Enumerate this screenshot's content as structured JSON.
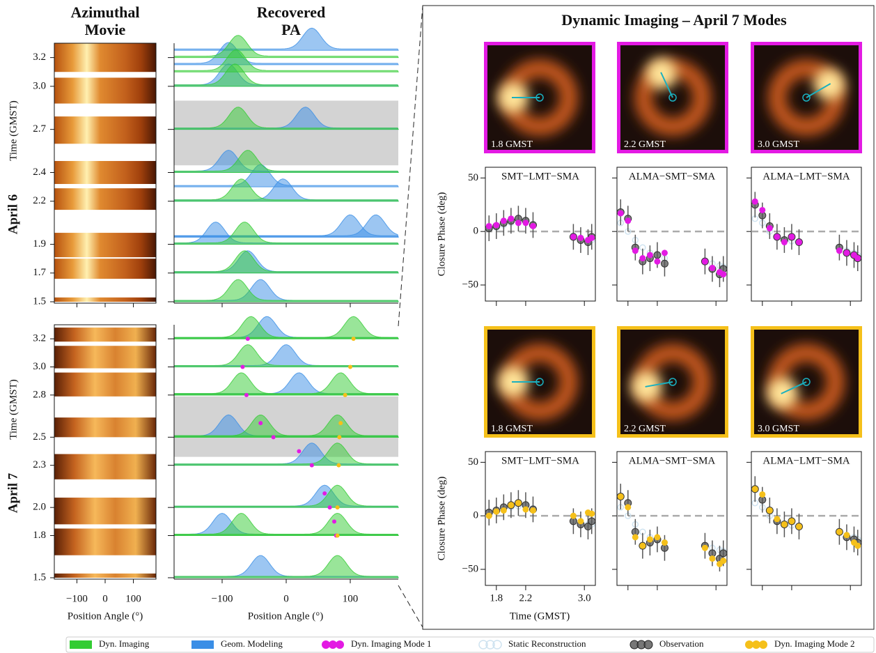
{
  "left": {
    "column_titles": [
      [
        "Azimuthal",
        "Movie"
      ],
      [
        "Recovered",
        "PA"
      ]
    ],
    "y_label": "Time (GMST)",
    "x_label": "Position Angle (°)",
    "movie_xlim": [
      -180,
      180
    ],
    "pa_xlim": [
      -175,
      175
    ],
    "xticks": [
      {
        "value": -100,
        "label": "−100"
      },
      0,
      100
    ],
    "panels": [
      {
        "day": "April 6",
        "ylim": [
          1.5,
          3.3
        ],
        "yticks": [
          1.5,
          1.7,
          1.9,
          2.2,
          2.4,
          2.7,
          {
            "value": 3,
            "label": "3.0"
          },
          3.2
        ],
        "movie_segments": [
          [
            3.1,
            3.3
          ],
          [
            2.88,
            3.06
          ],
          [
            2.6,
            2.79
          ],
          [
            2.32,
            2.48
          ],
          [
            2.14,
            2.29
          ],
          [
            1.81,
            1.98
          ],
          [
            1.66,
            1.8
          ],
          [
            1.5,
            1.53
          ]
        ],
        "gap": [
          2.45,
          2.9
        ]
      },
      {
        "day": "April 7",
        "ylim": [
          1.5,
          3.3
        ],
        "yticks": [
          1.5,
          1.8,
          {
            "value": 2,
            "label": "2.0"
          },
          2.3,
          2.5,
          2.8,
          {
            "value": 3,
            "label": "3.0"
          },
          3.2
        ],
        "movie_segments": [
          [
            3.18,
            3.28
          ],
          [
            2.99,
            3.15
          ],
          [
            2.79,
            2.96
          ],
          [
            2.5,
            2.64
          ],
          [
            2.2,
            2.38
          ],
          [
            1.88,
            2.07
          ],
          [
            1.66,
            1.85
          ],
          [
            1.5,
            1.53
          ]
        ],
        "gap": [
          2.36,
          2.79
        ]
      }
    ]
  },
  "right": {
    "title": "Dynamic Imaging – April 7 Modes",
    "y_label": "Closure Phase (deg)",
    "x_label": "Time (GMST)",
    "triangles": [
      "SMT−LMT−SMA",
      "ALMA−SMT−SMA",
      "ALMA−LMT−SMA"
    ],
    "times": [
      1.7,
      1.8,
      1.9,
      2.0,
      2.1,
      2.2,
      2.3,
      2.85,
      2.95,
      3.05,
      3.1
    ],
    "xlim": [
      1.65,
      3.15
    ],
    "xticks": [
      1.8,
      2.2,
      {
        "value": 3,
        "label": "3.0"
      }
    ],
    "ylim": [
      -65,
      60
    ],
    "yticks": [
      {
        "value": -50,
        "label": "−50"
      },
      0,
      50
    ]
  },
  "series": [
    {
      "name": "Dyn. Imaging",
      "color": "#33cc33",
      "kind": "patch",
      "pa_peaks": [
        {
          "times": [
            1.5,
            1.7,
            1.9,
            2.2,
            2.4,
            2.7,
            3.0,
            3.1,
            3.2
          ],
          "values": [
            -75,
            -65,
            -65,
            -70,
            -60,
            -75,
            -80,
            -78,
            -75
          ]
        },
        {
          "times": [
            1.5,
            1.8,
            1.8,
            2.0,
            2.3,
            2.5,
            2.5,
            2.8,
            2.8,
            3.0,
            3.2,
            3.2
          ],
          "values": [
            80,
            -70,
            80,
            80,
            80,
            -40,
            80,
            -70,
            85,
            -60,
            -55,
            105
          ]
        }
      ]
    },
    {
      "name": "Geom. Modeling",
      "color": "#3a8ee6",
      "kind": "patch",
      "pa_peaks": [
        {
          "times": [
            1.5,
            1.7,
            1.9,
            1.95,
            1.95,
            2.2,
            2.3,
            2.4,
            2.7,
            3.0,
            3.15,
            3.25
          ],
          "values": [
            -40,
            -60,
            -110,
            100,
            140,
            -5,
            -40,
            -90,
            30,
            -90,
            -90,
            40
          ]
        },
        {
          "times": [
            1.5,
            1.8,
            2.0,
            2.3,
            2.5,
            2.8,
            3.0,
            3.2
          ],
          "values": [
            -40,
            -100,
            60,
            40,
            -90,
            20,
            0,
            -30
          ]
        }
      ]
    },
    {
      "name": "Dyn. Imaging Mode 1",
      "color": "#e31ae3",
      "kind": "dots",
      "pa_track": {
        "times": [
          1.8,
          1.9,
          2.0,
          2.1,
          2.3,
          2.4,
          2.5,
          2.6,
          2.8,
          3.0,
          3.2
        ],
        "values": [
          78,
          75,
          68,
          60,
          40,
          20,
          -20,
          -40,
          -62,
          -68,
          -60
        ]
      },
      "images": [
        {
          "label": "1.8 GMST",
          "pa": 90
        },
        {
          "label": "2.2 GMST",
          "pa": 25
        },
        {
          "label": "3.0 GMST",
          "pa": -60
        }
      ],
      "closure_phase": [
        [
          5,
          6,
          10,
          12,
          8,
          8,
          5,
          -5,
          -6,
          -8,
          -6
        ],
        [
          17,
          10,
          -18,
          -25,
          -22,
          -28,
          -20,
          -28,
          -34,
          -38,
          -40
        ],
        [
          28,
          20,
          3,
          -5,
          -10,
          -5,
          -10,
          -18,
          -20,
          -22,
          -25
        ]
      ]
    },
    {
      "name": "Static Reconstruction",
      "color": "#cfe3f0",
      "kind": "open",
      "closure_phase": [
        [
          3,
          4,
          6,
          8,
          9,
          9,
          7,
          -4,
          -6,
          -8,
          -8
        ],
        [
          8,
          0,
          -8,
          -15,
          -20,
          -22,
          -25,
          -28,
          -30,
          -32,
          -33
        ],
        [
          12,
          8,
          0,
          -5,
          -8,
          -9,
          -10,
          -15,
          -18,
          -20,
          -22
        ]
      ]
    },
    {
      "name": "Observation",
      "color": "#555555",
      "kind": "dark",
      "closure_phase": [
        [
          3,
          5,
          8,
          10,
          12,
          10,
          6,
          -5,
          -8,
          -10,
          -5
        ],
        [
          18,
          12,
          -15,
          -28,
          -25,
          -22,
          -30,
          -28,
          -35,
          -40,
          -35
        ],
        [
          25,
          15,
          5,
          -5,
          -8,
          -5,
          -10,
          -15,
          -20,
          -22,
          -25
        ]
      ],
      "closure_phase_errors": [
        12,
        12,
        12,
        12,
        12,
        12,
        12,
        12,
        12,
        12,
        12
      ]
    },
    {
      "name": "Dyn. Imaging Mode 2",
      "color": "#f5c01a",
      "kind": "dots",
      "pa_track": {
        "times": [
          1.8,
          2.0,
          2.3,
          2.5,
          2.6,
          2.8,
          3.0,
          3.2
        ],
        "values": [
          80,
          80,
          82,
          83,
          85,
          92,
          100,
          105
        ]
      },
      "images": [
        {
          "label": "1.8 GMST",
          "pa": 90
        },
        {
          "label": "2.2 GMST",
          "pa": 100
        },
        {
          "label": "3.0 GMST",
          "pa": 115
        }
      ],
      "closure_phase": [
        [
          0,
          4,
          5,
          10,
          12,
          6,
          5,
          0,
          -5,
          3,
          2
        ],
        [
          18,
          8,
          -20,
          -28,
          -22,
          -20,
          -25,
          -30,
          -40,
          -45,
          -42
        ],
        [
          25,
          20,
          5,
          -3,
          -8,
          -5,
          -10,
          -15,
          -18,
          -25,
          -28
        ]
      ]
    }
  ]
}
